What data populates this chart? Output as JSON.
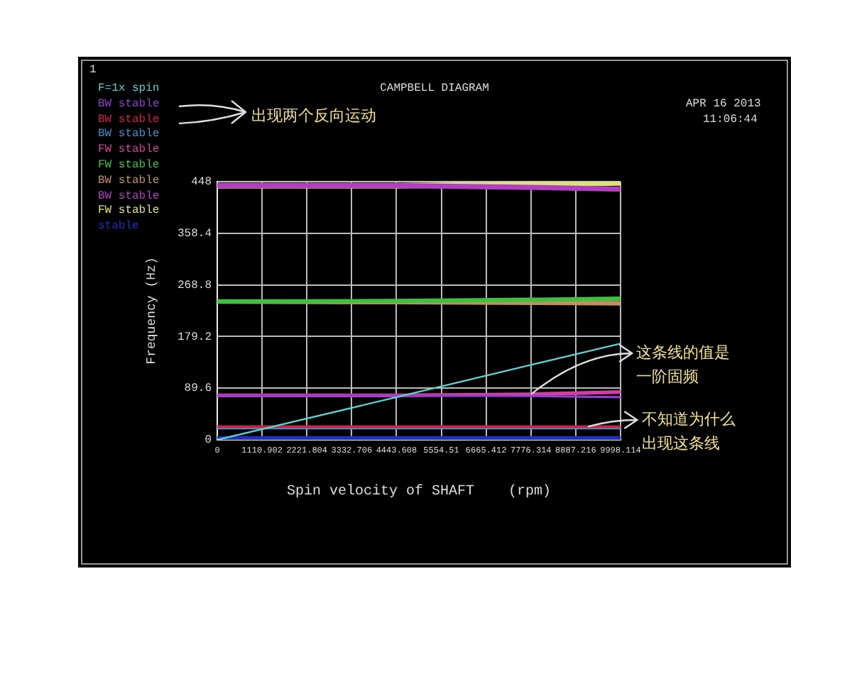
{
  "chart_data": {
    "type": "line",
    "title": "CAMPBELL DIAGRAM",
    "xlabel": "Spin velocity of SHAFT    (rpm)",
    "ylabel": "Frequency (Hz)",
    "x": [
      0,
      4443.608,
      7776.314,
      9998.114
    ],
    "xlim": [
      0,
      9998.114
    ],
    "xticks": [
      0,
      1110.902,
      2221.804,
      3332.706,
      4443.608,
      5554.51,
      6665.412,
      7776.314,
      8887.216,
      9998.114
    ],
    "ylim": [
      0,
      448
    ],
    "yticks": [
      0,
      89.6,
      179.2,
      268.8,
      358.4,
      448
    ],
    "grid": true,
    "legend": "top left",
    "marker": "none",
    "line_style": "solid",
    "series": [
      {
        "name": "F=1x spin",
        "color": "#60d0d0",
        "values": [
          0,
          74,
          130,
          167
        ]
      },
      {
        "name": "BW stable",
        "color": "#9040d0",
        "values": [
          77,
          77,
          76,
          74
        ]
      },
      {
        "name": "BW stable",
        "color": "#d02040",
        "values": [
          23,
          23,
          23,
          23
        ]
      },
      {
        "name": "BW stable",
        "color": "#4090d0",
        "values": [
          21,
          21,
          21,
          21
        ]
      },
      {
        "name": "FW stable",
        "color": "#d040a0",
        "values": [
          77,
          77,
          79,
          83
        ]
      },
      {
        "name": "FW stable",
        "color": "#40c040",
        "values": [
          240,
          241,
          243,
          245
        ]
      },
      {
        "name": "BW stable",
        "color": "#c09060",
        "values": [
          240,
          239,
          238,
          237
        ]
      },
      {
        "name": "BW stable",
        "color": "#b040c0",
        "values": [
          441,
          441,
          438,
          435
        ]
      },
      {
        "name": "FW stable",
        "color": "#e0e080",
        "values": [
          441,
          441,
          443,
          446
        ]
      },
      {
        "name": "stable",
        "color": "#2030c0",
        "values": [
          1,
          1,
          1,
          1
        ]
      }
    ],
    "annotations": [
      "1",
      "APR 16 2013",
      "11:06:44",
      "出现两个反向运动",
      {
        "text": "这条线的值是一阶固频",
        "x": 7776.314,
        "y": 79
      },
      {
        "text": "不知道为什么出现这条线",
        "x": 9200,
        "y": 23
      }
    ]
  }
}
